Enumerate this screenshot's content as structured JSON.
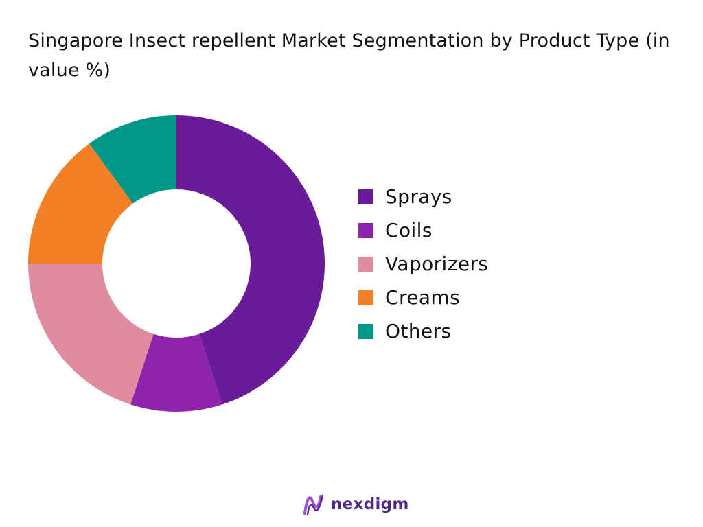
{
  "title": "Singapore Insect repellent Market  Segmentation by Product Type (in value %)",
  "chart_data": {
    "type": "pie",
    "title": "Singapore Insect repellent Market  Segmentation by Product Type (in value %)",
    "categories": [
      "Sprays",
      "Coils",
      "Vaporizers",
      "Creams",
      "Others"
    ],
    "values": [
      45,
      10,
      20,
      15,
      10
    ],
    "colors": [
      "#6a1b9a",
      "#8e24aa",
      "#df8ba0",
      "#f57f24",
      "#009688"
    ],
    "legend": "right",
    "donut": true
  },
  "logo": {
    "text": "nexdigm",
    "icon": "nexdigm-logo-icon"
  }
}
